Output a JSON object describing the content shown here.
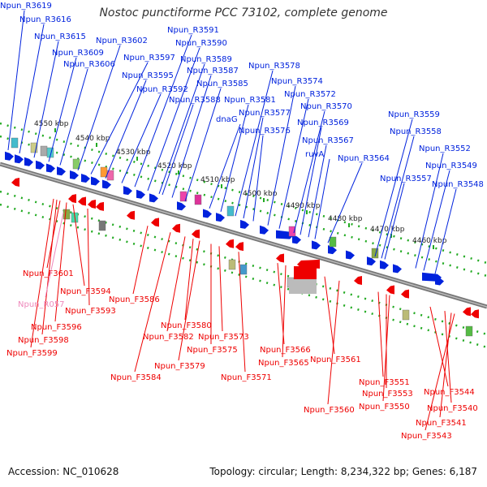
{
  "title": "Nostoc punctiforme PCC 73102, complete genome",
  "footer": {
    "accession": "Accession: NC_010628",
    "stats": "Topology: circular; Length: 8,234,322 bp; Genes: 6,187"
  },
  "colors": {
    "forward_gene": "#0022dd",
    "reverse_gene": "#ee0000",
    "pseudo_gene": "#ee88bb",
    "backbone": "#777777",
    "ticks": "#22aa22"
  },
  "scale_labels": [
    "4550 kbp",
    "4540 kbp",
    "4530 kbp",
    "4520 kbp",
    "4510 kbp",
    "4500 kbp",
    "4490 kbp",
    "4480 kbp",
    "4470 kbp",
    "4460 kbp"
  ],
  "forward_labels": [
    "Npun_R3619",
    "Npun_R3616",
    "Npun_R3615",
    "Npun_R3609",
    "Npun_R3606",
    "Npun_R3602",
    "Npun_R3597",
    "Npun_R3595",
    "Npun_R3592",
    "Npun_R3591",
    "Npun_R3590",
    "Npun_R3589",
    "Npun_R3587",
    "Npun_R3585",
    "Npun_R3588",
    "dnaG",
    "Npun_R3581",
    "Npun_R3578",
    "Npun_R3577",
    "Npun_R3576",
    "Npun_R3574",
    "Npun_R3572",
    "Npun_R3570",
    "Npun_R3569",
    "Npun_R3567",
    "ruvA",
    "Npun_R3564",
    "Npun_R3559",
    "Npun_R3558",
    "Npun_R3557",
    "Npun_R3552",
    "Npun_R3549",
    "Npun_R3548"
  ],
  "reverse_labels": [
    "Npun_F3601",
    "Npun_F3594",
    "Npun_F3593",
    "Npun_F3596",
    "Npun_F3598",
    "Npun_F3599",
    "Npun_F3586",
    "Npun_F3584",
    "Npun_F3582",
    "Npun_F3580",
    "Npun_F3579",
    "Npun_F3575",
    "Npun_F3573",
    "Npun_F3571",
    "Npun_F3566",
    "Npun_F3565",
    "Npun_F3561",
    "Npun_F3560",
    "Npun_F3551",
    "Npun_F3553",
    "Npun_F3550",
    "Npun_F3544",
    "Npun_F3540",
    "Npun_F3541",
    "Npun_F3543"
  ],
  "pseudo_labels": [
    "Npun_R057"
  ]
}
